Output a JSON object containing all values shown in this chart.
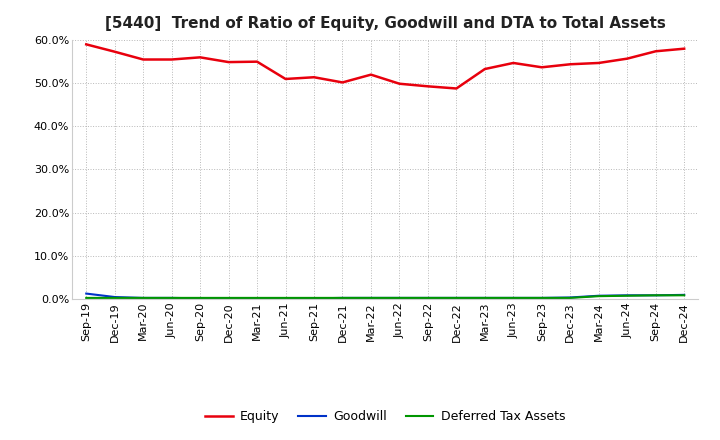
{
  "title": "[5440]  Trend of Ratio of Equity, Goodwill and DTA to Total Assets",
  "x_labels": [
    "Sep-19",
    "Dec-19",
    "Mar-20",
    "Jun-20",
    "Sep-20",
    "Dec-20",
    "Mar-21",
    "Jun-21",
    "Sep-21",
    "Dec-21",
    "Mar-22",
    "Jun-22",
    "Sep-22",
    "Dec-22",
    "Mar-23",
    "Jun-23",
    "Sep-23",
    "Dec-23",
    "Mar-24",
    "Jun-24",
    "Sep-24",
    "Dec-24"
  ],
  "equity": [
    0.589,
    0.572,
    0.554,
    0.554,
    0.559,
    0.548,
    0.549,
    0.509,
    0.513,
    0.501,
    0.519,
    0.498,
    0.492,
    0.487,
    0.532,
    0.546,
    0.536,
    0.543,
    0.546,
    0.556,
    0.573,
    0.579
  ],
  "goodwill": [
    0.013,
    0.005,
    0.003,
    0.003,
    0.002,
    0.002,
    0.002,
    0.002,
    0.002,
    0.003,
    0.003,
    0.003,
    0.003,
    0.003,
    0.003,
    0.003,
    0.003,
    0.004,
    0.008,
    0.009,
    0.009,
    0.01
  ],
  "dta": [
    0.003,
    0.003,
    0.003,
    0.003,
    0.003,
    0.003,
    0.003,
    0.003,
    0.003,
    0.003,
    0.003,
    0.003,
    0.003,
    0.003,
    0.003,
    0.003,
    0.003,
    0.003,
    0.007,
    0.008,
    0.009,
    0.009
  ],
  "equity_color": "#e8000d",
  "goodwill_color": "#0032c8",
  "dta_color": "#009600",
  "ylim": [
    0.0,
    0.6
  ],
  "yticks": [
    0.0,
    0.1,
    0.2,
    0.3,
    0.4,
    0.5,
    0.6
  ],
  "bg_color": "#ffffff",
  "grid_color": "#b0b0b0",
  "legend_labels": [
    "Equity",
    "Goodwill",
    "Deferred Tax Assets"
  ],
  "title_fontsize": 11,
  "tick_fontsize": 8,
  "legend_fontsize": 9
}
